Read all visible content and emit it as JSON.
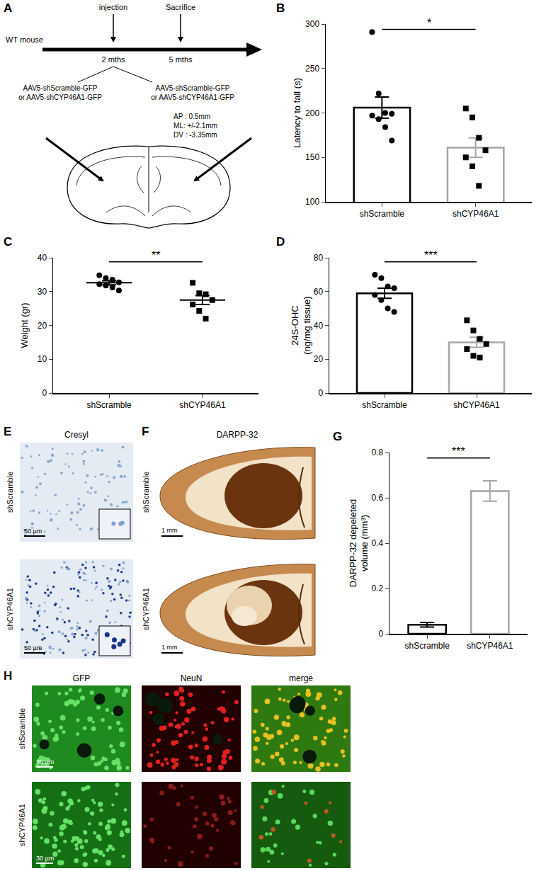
{
  "panel_A": {
    "panel": "A",
    "timeline": {
      "subject": "WT mouse",
      "events": [
        {
          "label": "injection",
          "time": "2 mths"
        },
        {
          "label": "Sacrifice",
          "time": "5 mths"
        }
      ]
    },
    "injections": {
      "left": [
        "AAV5-shScramble-GFP",
        "or AAV5-shCYP46A1-GFP"
      ],
      "right": [
        "AAV5-shScramble-GFP",
        "or AAV5-shCYP46A1-GFP"
      ]
    },
    "coordinates": [
      "AP : 0.5mm",
      "ML: +/-2.1mm",
      "DV : -3.35mm"
    ]
  },
  "chart_data": [
    {
      "panel": "B",
      "type": "bar",
      "categories": [
        "shScramble",
        "shCYP46A1"
      ],
      "values": [
        206,
        161
      ],
      "errors": [
        12,
        11
      ],
      "colors": [
        "#000000",
        "#a6a6a6"
      ],
      "points": [
        {
          "values": [
            291,
            222,
            200,
            199,
            197,
            193,
            184,
            169
          ],
          "marker": "circle",
          "color": "#000000"
        },
        {
          "values": [
            205,
            195,
            172,
            158,
            150,
            140,
            118
          ],
          "marker": "square",
          "color": "#000000"
        }
      ],
      "ylabel": [
        "Latency to fall (s)"
      ],
      "ylim": [
        100,
        300
      ],
      "yticks": [
        100,
        150,
        200,
        250,
        300
      ],
      "significance": "*"
    },
    {
      "panel": "C",
      "type": "scatter",
      "categories": [
        "shScramble",
        "shCYP46A1"
      ],
      "values": [
        32.6,
        27.5
      ],
      "errors": [
        0.6,
        1.3
      ],
      "color": "#000000",
      "points": [
        {
          "values": [
            34.8,
            34.0,
            33.5,
            32.7,
            32.2,
            31.8,
            31.2,
            30.3
          ],
          "marker": "circle",
          "color": "#000000"
        },
        {
          "values": [
            32.6,
            29.5,
            29.2,
            27.5,
            26.2,
            24.3,
            22.0
          ],
          "marker": "square",
          "color": "#000000"
        }
      ],
      "ylabel": [
        "Weight (gr)"
      ],
      "ylim": [
        0,
        40
      ],
      "yticks": [
        0,
        10,
        20,
        30,
        40
      ],
      "significance": "**"
    },
    {
      "panel": "D",
      "type": "bar",
      "categories": [
        "shScramble",
        "shCYP46A1"
      ],
      "values": [
        59,
        30
      ],
      "errors": [
        3,
        3
      ],
      "colors": [
        "#000000",
        "#a6a6a6"
      ],
      "points": [
        {
          "values": [
            70,
            68,
            63,
            62,
            58,
            55,
            50,
            48
          ],
          "marker": "circle",
          "color": "#000000"
        },
        {
          "values": [
            43,
            37,
            32,
            29,
            26,
            22,
            21
          ],
          "marker": "square",
          "color": "#000000"
        }
      ],
      "ylabel": [
        "24S-OHC",
        "(ng/mg tissue)"
      ],
      "ylim": [
        0,
        80
      ],
      "yticks": [
        0,
        20,
        40,
        60,
        80
      ],
      "significance": "***"
    },
    {
      "panel": "G",
      "type": "bar",
      "categories": [
        "shScramble",
        "shCYP46A1"
      ],
      "values": [
        0.04,
        0.63
      ],
      "errors": [
        0.01,
        0.045
      ],
      "colors": [
        "#000000",
        "#a6a6a6"
      ],
      "ylabel": [
        "DARPP-32 depeleted",
        "volume (mm³)"
      ],
      "ylim": [
        0,
        0.8
      ],
      "yticks": [
        0,
        0.2,
        0.4,
        0.6,
        0.8
      ],
      "significance": "***"
    }
  ],
  "panel_E": {
    "panel": "E",
    "title": "Cresyl",
    "rows": [
      "shScramble",
      "shCYP46A1"
    ],
    "scale_bar": "50 µm"
  },
  "panel_F": {
    "panel": "F",
    "title": "DARPP-32",
    "rows": [
      "shScramble",
      "shCYP46A1"
    ],
    "scale_bar": "1 mm"
  },
  "panel_H": {
    "panel": "H",
    "columns": [
      "GFP",
      "NeuN",
      "merge"
    ],
    "rows": [
      "shScramble",
      "shCYP46A1"
    ],
    "scale_bar": "30 µm"
  }
}
